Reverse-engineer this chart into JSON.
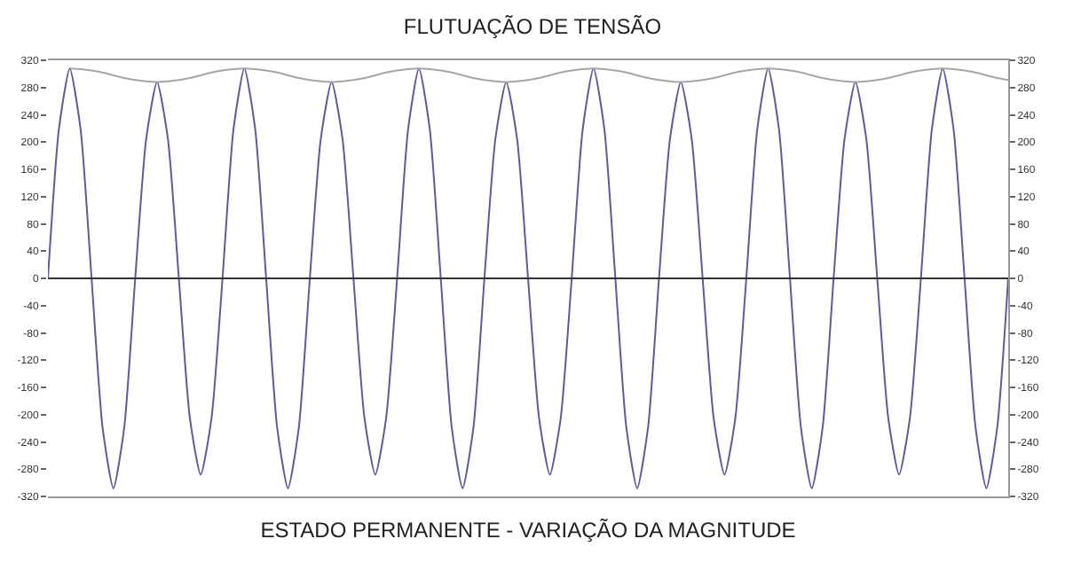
{
  "chart_data": {
    "type": "line",
    "title": "FLUTUAÇÃO DE TENSÃO",
    "xlabel": "ESTADO PERMANENTE - VARIAÇÃO DA MAGNITUDE",
    "categories": [
      null,
      null,
      null,
      null,
      null,
      null,
      null,
      null,
      null,
      null,
      null,
      null,
      null,
      null,
      null,
      null,
      null,
      null,
      null,
      null,
      null,
      null,
      null,
      null,
      null,
      null,
      null,
      null,
      null,
      null,
      null,
      null,
      null,
      null,
      null,
      null,
      null,
      null,
      null,
      null,
      null,
      null,
      null,
      null,
      null,
      null,
      null,
      null,
      null,
      null,
      null,
      null,
      null,
      null,
      null,
      null,
      null,
      null,
      null,
      null,
      null,
      null,
      null,
      null,
      null,
      null,
      null,
      null,
      null,
      null,
      null,
      null,
      null,
      null,
      null,
      null,
      null,
      null,
      null,
      null,
      null,
      null,
      null,
      null,
      null,
      null,
      null,
      null,
      null
    ],
    "series": [
      {
        "color": "#5c5c9c",
        "values": [
          0,
          218,
          308,
          218,
          0,
          -218,
          -308,
          -218,
          0,
          204,
          288,
          204,
          0,
          -204,
          -288,
          -204,
          0,
          218,
          308,
          218,
          0,
          -218,
          -308,
          -218,
          0,
          204,
          288,
          204,
          0,
          -204,
          -288,
          -204,
          0,
          218,
          308,
          218,
          0,
          -218,
          -308,
          -218,
          0,
          204,
          288,
          204,
          0,
          -204,
          -288,
          -204,
          0,
          218,
          308,
          218,
          0,
          -218,
          -308,
          -218,
          0,
          204,
          288,
          204,
          0,
          -204,
          -288,
          -204,
          0,
          218,
          308,
          218,
          0,
          -218,
          -308,
          -218,
          0,
          204,
          288,
          204,
          0,
          -204,
          -288,
          -204,
          0,
          218,
          308,
          218,
          0,
          -218,
          -308,
          -218,
          0
        ]
      },
      {
        "color": "#a6a6a6",
        "values": [
          null,
          null,
          308,
          307,
          305,
          302,
          298,
          294,
          291,
          289,
          288,
          289,
          291,
          294,
          298,
          302,
          305,
          307,
          308,
          307,
          305,
          302,
          298,
          294,
          291,
          289,
          288,
          289,
          291,
          294,
          298,
          302,
          305,
          307,
          308,
          307,
          305,
          302,
          298,
          294,
          291,
          289,
          288,
          289,
          291,
          294,
          298,
          302,
          305,
          307,
          308,
          307,
          305,
          302,
          298,
          294,
          291,
          289,
          288,
          289,
          291,
          294,
          298,
          302,
          305,
          307,
          308,
          307,
          305,
          302,
          298,
          294,
          291,
          289,
          288,
          289,
          291,
          294,
          298,
          302,
          305,
          307,
          308,
          307,
          305,
          302,
          298,
          294,
          291
        ]
      }
    ],
    "ylim": [
      -320,
      320
    ],
    "yticks": [
      -320,
      -280,
      -240,
      -200,
      -160,
      -120,
      -80,
      -40,
      0,
      40,
      80,
      120,
      160,
      200,
      240,
      280,
      320
    ],
    "y2lim": [
      -320,
      320
    ],
    "y2ticks": [
      -320,
      -280,
      -240,
      -200,
      -160,
      -120,
      -80,
      -40,
      0,
      40,
      80,
      120,
      160,
      200,
      240,
      280,
      320
    ],
    "ref_lines": [
      {
        "axis": "y",
        "value": 0,
        "color": "#333333"
      }
    ],
    "grid": false,
    "marker": "none",
    "line_style": "solid"
  }
}
